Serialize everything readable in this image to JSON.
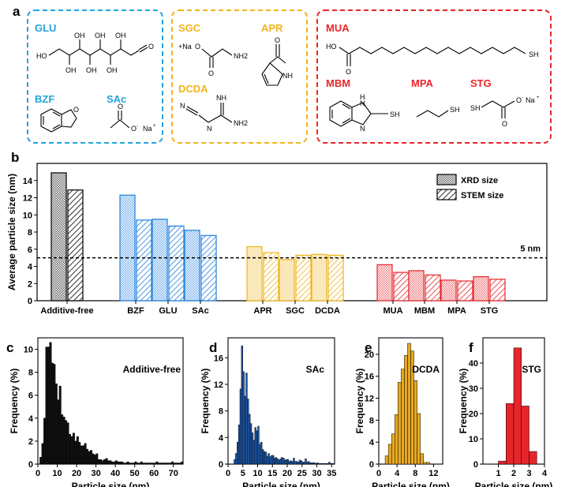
{
  "panels": {
    "a": "a",
    "b": "b",
    "c": "c",
    "d": "d",
    "e": "e",
    "f": "f"
  },
  "panel_a": {
    "groups": [
      {
        "color": "#22a3dc",
        "labels": [
          "GLU",
          "BZF",
          "SAc"
        ]
      },
      {
        "color": "#f0b31b",
        "labels": [
          "SGC",
          "APR",
          "DCDA"
        ]
      },
      {
        "color": "#e8252a",
        "labels": [
          "MUA",
          "MBM",
          "MPA",
          "STG"
        ]
      }
    ],
    "atoms": {
      "ho": "HO",
      "oh": "OH",
      "sh": "SH",
      "nh": "NH",
      "nh2": "NH2",
      "n": "N",
      "h": "H",
      "o": "O",
      "o_minus": "O",
      "na_plus": "Na",
      "plus": "+",
      "minus": "-",
      "plus_na_o": "+Na",
      "na": "Na"
    }
  },
  "chart_data": [
    {
      "type": "bar",
      "id": "b",
      "ylabel": "Average particle size (nm)",
      "ylim": [
        0,
        16
      ],
      "yticks": [
        0,
        2,
        4,
        6,
        8,
        10,
        12,
        14
      ],
      "categories": [
        "Additive-free",
        "BZF",
        "GLU",
        "SAc",
        "APR",
        "SGC",
        "DCDA",
        "MUA",
        "MBM",
        "MPA",
        "STG"
      ],
      "category_colors": [
        "#000000",
        "#1e7fe0",
        "#1e7fe0",
        "#1e7fe0",
        "#f0b31b",
        "#f0b31b",
        "#f0b31b",
        "#e8252a",
        "#e8252a",
        "#e8252a",
        "#e8252a"
      ],
      "series": [
        {
          "name": "XRD size",
          "values": [
            14.9,
            12.3,
            9.5,
            8.2,
            6.3,
            4.8,
            5.4,
            4.2,
            3.5,
            2.4,
            2.8
          ]
        },
        {
          "name": "STEM size",
          "values": [
            12.9,
            9.4,
            8.7,
            7.6,
            5.6,
            5.3,
            5.3,
            3.3,
            3.0,
            2.3,
            2.5
          ]
        }
      ],
      "reference_line": {
        "y": 5,
        "label": "5 nm"
      },
      "legend_position": "top-right"
    },
    {
      "type": "bar",
      "id": "c",
      "title": "Additive-free",
      "xlabel": "Particle size (nm)",
      "ylabel": "Frequency (%)",
      "xlim": [
        0,
        75
      ],
      "xticks": [
        0,
        10,
        20,
        30,
        40,
        50,
        60,
        70
      ],
      "ylim": [
        0,
        11
      ],
      "yticks": [
        0,
        2,
        4,
        6,
        8,
        10
      ],
      "bin_width": 1,
      "color": "#111111",
      "values": [
        0,
        0.6,
        1.8,
        4.0,
        10.2,
        10.2,
        10.6,
        8.8,
        8.7,
        7.0,
        5.6,
        6.8,
        4.3,
        4.1,
        3.8,
        3.6,
        2.6,
        2.4,
        2.7,
        2.0,
        2.4,
        1.9,
        1.6,
        1.6,
        1.8,
        1.3,
        1.1,
        1.2,
        0.9,
        0.8,
        0.9,
        0.4,
        0.4,
        0.3,
        0.4,
        0.5,
        0.3,
        0.3,
        0.2,
        0.2,
        0.3,
        0.2,
        0.2,
        0.2,
        0.1,
        0.1,
        0.2,
        0.1,
        0.1,
        0.1,
        0.2,
        0.1,
        0.1,
        0.2,
        0.1,
        0.1,
        0.1,
        0.1,
        0.1,
        0.1,
        0.1,
        0.2,
        0.1,
        0.1,
        0.1,
        0.1,
        0.1,
        0.1,
        0.1,
        0.2,
        0.1,
        0.1,
        0.1,
        0.1,
        0.2
      ]
    },
    {
      "type": "bar",
      "id": "d",
      "title": "SAc",
      "xlabel": "Particle size (nm)",
      "ylabel": "Frequency (%)",
      "xlim": [
        0,
        36
      ],
      "xticks": [
        0,
        5,
        10,
        15,
        20,
        25,
        30,
        35
      ],
      "ylim": [
        0,
        19
      ],
      "yticks": [
        0,
        4,
        8,
        12,
        16
      ],
      "bin_width": 0.5,
      "color": "#1f5fb8",
      "values": [
        0,
        0,
        0,
        0,
        0.7,
        1.6,
        3.3,
        5.9,
        11.3,
        17.8,
        13.9,
        10.2,
        13.7,
        9.8,
        7.5,
        6.1,
        4.7,
        3.6,
        5.5,
        5.0,
        5.7,
        3.0,
        3.3,
        2.2,
        1.9,
        1.8,
        1.2,
        1.6,
        1.1,
        1.3,
        1.3,
        0.9,
        1.0,
        0.8,
        0.6,
        0.8,
        1.0,
        0.9,
        0.6,
        0.7,
        0.7,
        0.4,
        0.5,
        0.4,
        0.9,
        0.4,
        0.4,
        0.3,
        0.6,
        0.5,
        0.3,
        0.3,
        0.8,
        0.3,
        0.4,
        0.2,
        0.2,
        0.2,
        0.2,
        0.1,
        0.2,
        0.1,
        0.1,
        0.1,
        0.1,
        0.1,
        0.1,
        0.1,
        0.3,
        0.1,
        0.1,
        0.1
      ]
    },
    {
      "type": "bar",
      "id": "e",
      "title": "DCDA",
      "xlabel": "Particle size (nm)",
      "ylabel": "Frequency (%)",
      "xlim": [
        0,
        14
      ],
      "xticks": [
        0,
        4,
        8,
        12
      ],
      "ylim": [
        0,
        23
      ],
      "yticks": [
        0,
        4,
        8,
        12,
        16,
        20
      ],
      "bin_width": 0.7,
      "bin_start": 1.4,
      "color": "#e8a823",
      "values": [
        1.5,
        3.6,
        5.5,
        9.0,
        14.9,
        17.3,
        19.8,
        22.0,
        20.6,
        15.2,
        9.2,
        1.9,
        0.3,
        0.3
      ]
    },
    {
      "type": "bar",
      "id": "f",
      "title": "STG",
      "xlabel": "Particle size (nm)",
      "ylabel": "Frequency (%)",
      "xlim": [
        0,
        4
      ],
      "xticks": [
        1,
        2,
        3,
        4
      ],
      "ylim": [
        0,
        50
      ],
      "yticks": [
        0,
        10,
        20,
        30,
        40
      ],
      "bin_width": 0.5,
      "bin_start": 1.0,
      "color": "#e8252a",
      "values": [
        1.2,
        24,
        46,
        23,
        5
      ]
    }
  ]
}
